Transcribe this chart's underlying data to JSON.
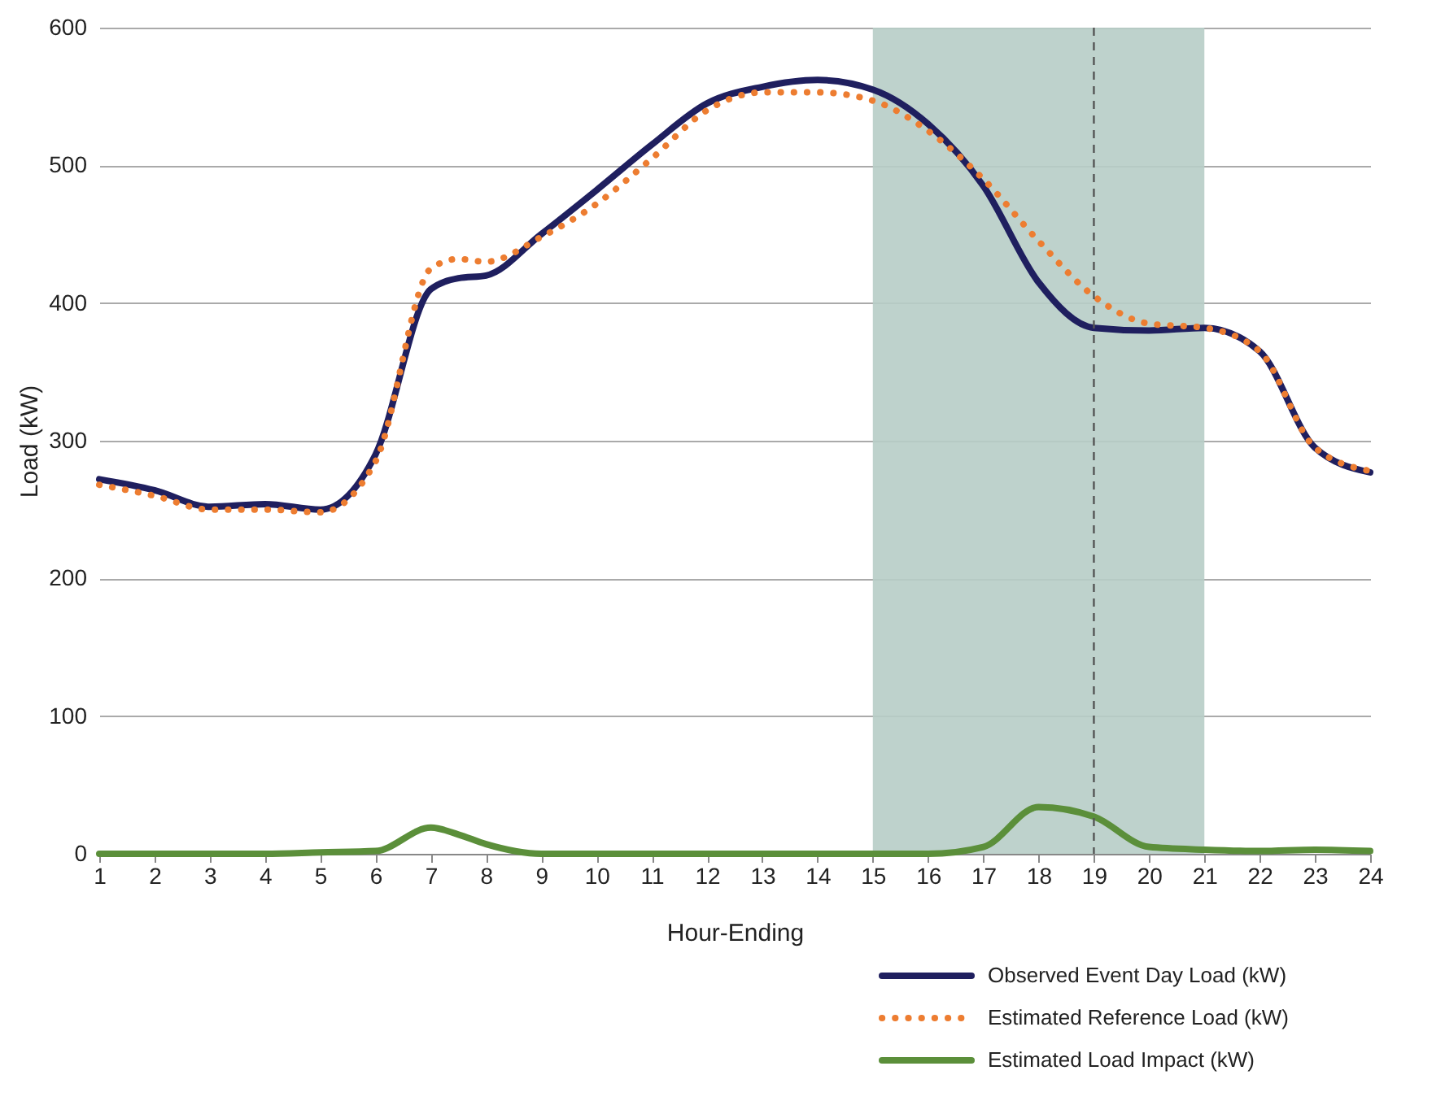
{
  "chart_data": {
    "type": "line",
    "xlabel": "Hour-Ending",
    "ylabel": "Load (kW)",
    "x": [
      1,
      2,
      3,
      4,
      5,
      6,
      7,
      7.5,
      8,
      9,
      10,
      11,
      12,
      13,
      14,
      15,
      16,
      17,
      18,
      19,
      20,
      21,
      22,
      23,
      24
    ],
    "series": [
      {
        "name": "Observed Event Day Load (kW)",
        "color": "#1f1f5f",
        "line_style": "solid",
        "values": [
          272,
          264,
          252,
          254,
          250,
          290,
          410,
          418,
          420,
          450,
          482,
          515,
          545,
          557,
          562,
          555,
          530,
          485,
          415,
          382,
          380,
          382,
          365,
          295,
          277
        ]
      },
      {
        "name": "Estimated Reference Load (kW)",
        "color": "#ed7d31",
        "line_style": "dotted",
        "values": [
          268,
          260,
          250,
          250,
          248,
          285,
          425,
          432,
          430,
          448,
          472,
          505,
          540,
          553,
          553,
          547,
          525,
          490,
          445,
          405,
          385,
          382,
          365,
          295,
          278
        ]
      },
      {
        "name": "Estimated Load Impact (kW)",
        "color": "#5b8f3a",
        "line_style": "solid",
        "values": [
          0,
          0,
          0,
          0,
          1,
          2,
          19,
          14,
          7,
          0,
          0,
          0,
          0,
          0,
          0,
          0,
          0,
          5,
          34,
          27,
          5,
          3,
          2,
          3,
          2
        ]
      }
    ],
    "xlim": [
      1,
      24
    ],
    "xticks": [
      1,
      2,
      3,
      4,
      5,
      6,
      7,
      8,
      9,
      10,
      11,
      12,
      13,
      14,
      15,
      16,
      17,
      18,
      19,
      20,
      21,
      22,
      23,
      24
    ],
    "ylim": [
      0,
      600
    ],
    "yticks": [
      0,
      100,
      200,
      300,
      400,
      500,
      600
    ],
    "grid": "y",
    "legend": "bottom right",
    "bands": [
      {
        "axis": "x",
        "from": 15,
        "to": 21,
        "color": "#b7cdc6"
      }
    ],
    "ref_lines": [
      {
        "axis": "x",
        "value": 19,
        "color": "#555555",
        "line_style": "dashed"
      }
    ]
  }
}
